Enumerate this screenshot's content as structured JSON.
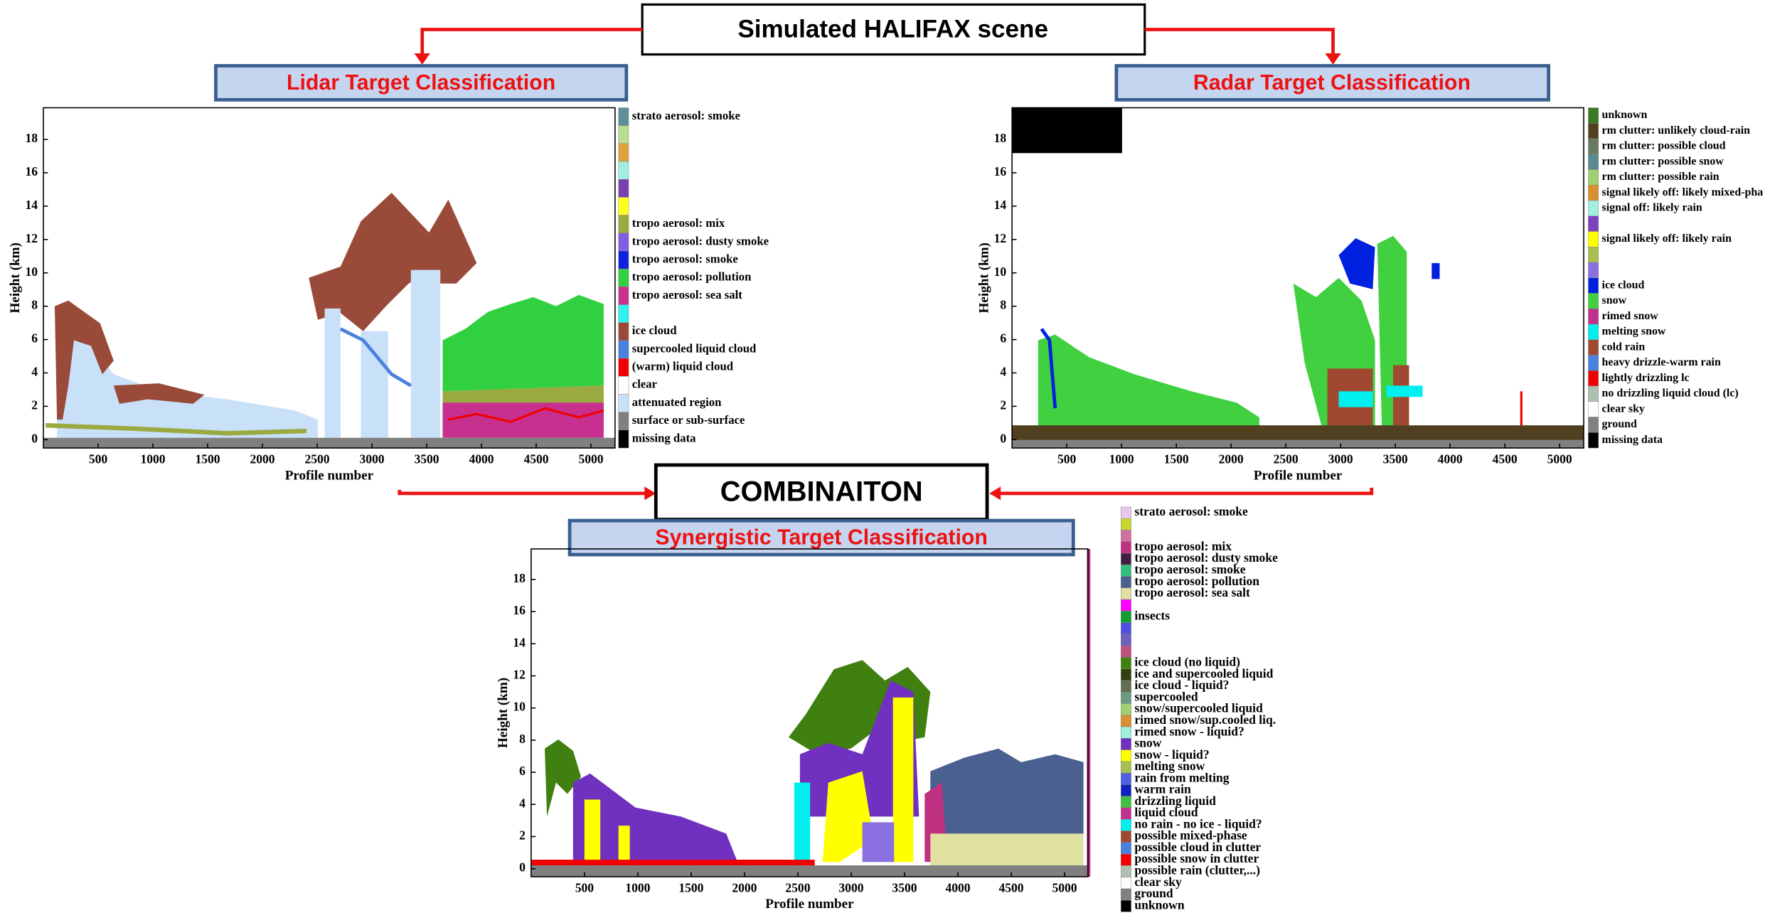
{
  "title": "Simulated HALIFAX scene",
  "combination": "COMBINAITON",
  "panels": [
    {
      "title": "Lidar Target Classification",
      "ylabel": "Height (km)",
      "xlabel": "Profile number",
      "ylim": [
        -0.5,
        19.9
      ],
      "xlim": [
        0,
        5220
      ],
      "yticks": [
        0,
        2,
        4,
        6,
        8,
        10,
        12,
        14,
        16,
        18
      ],
      "xticks": [
        500,
        1000,
        1500,
        2000,
        2500,
        3000,
        3500,
        4000,
        4500,
        5000
      ],
      "legend": [
        {
          "label": "strato aerosol: smoke",
          "color": "#5f8f95"
        },
        {
          "label": null,
          "color": "#b8dd90"
        },
        {
          "label": null,
          "color": "#e0a040"
        },
        {
          "label": null,
          "color": "#a0eee0"
        },
        {
          "label": null,
          "color": "#7a3fb0"
        },
        {
          "label": null,
          "color": "#ffff20"
        },
        {
          "label": "tropo aerosol: mix",
          "color": "#9aaa40"
        },
        {
          "label": "tropo aerosol: dusty smoke",
          "color": "#8060e0"
        },
        {
          "label": "tropo aerosol: smoke",
          "color": "#1020e0"
        },
        {
          "label": "tropo aerosol: pollution",
          "color": "#30d040"
        },
        {
          "label": "tropo aerosol: sea salt",
          "color": "#c83090"
        },
        {
          "label": null,
          "color": "#30f0f0"
        },
        {
          "label": "ice cloud",
          "color": "#9a4a38"
        },
        {
          "label": "supercooled liquid cloud",
          "color": "#4a80e0"
        },
        {
          "label": "(warm) liquid cloud",
          "color": "#f00000"
        },
        {
          "label": "clear",
          "color": "#ffffff"
        },
        {
          "label": "attenuated region",
          "color": "#c8e0f8"
        },
        {
          "label": "surface or sub-surface",
          "color": "#808080"
        },
        {
          "label": "missing data",
          "color": "#000000"
        }
      ]
    },
    {
      "title": "Radar Target Classification",
      "ylabel": "Height (km)",
      "xlabel": "Profile number",
      "ylim": [
        -0.5,
        19.9
      ],
      "xlim": [
        0,
        5220
      ],
      "yticks": [
        0,
        2,
        4,
        6,
        8,
        10,
        12,
        14,
        16,
        18
      ],
      "xticks": [
        500,
        1000,
        1500,
        2000,
        2500,
        3000,
        3500,
        4000,
        4500,
        5000
      ],
      "legend": [
        {
          "label": "unknown",
          "color": "#3a7a20"
        },
        {
          "label": "rm clutter: unlikely cloud-rain",
          "color": "#504020"
        },
        {
          "label": "rm clutter: possible cloud",
          "color": "#6a7a60"
        },
        {
          "label": "rm clutter: possible snow",
          "color": "#5a8a90"
        },
        {
          "label": "rm clutter: possible rain",
          "color": "#a0d070"
        },
        {
          "label": "signal likely off: likely mixed-pha",
          "color": "#d89030"
        },
        {
          "label": "signal off: likely rain",
          "color": "#a0f0e0"
        },
        {
          "label": null,
          "color": "#8040c0"
        },
        {
          "label": "signal likely off: likely rain",
          "color": "#ffff00"
        },
        {
          "label": null,
          "color": "#a8c050"
        },
        {
          "label": null,
          "color": "#8a70e0"
        },
        {
          "label": "ice cloud",
          "color": "#0020e0"
        },
        {
          "label": "snow",
          "color": "#40d040"
        },
        {
          "label": "rimed snow",
          "color": "#c03090"
        },
        {
          "label": "melting snow",
          "color": "#00f0f0"
        },
        {
          "label": "cold rain",
          "color": "#a04830"
        },
        {
          "label": "heavy drizzle-warm rain",
          "color": "#4a80e0"
        },
        {
          "label": "lightly drizzling lc",
          "color": "#f00000"
        },
        {
          "label": "no drizzling liquid cloud (lc)",
          "color": "#b0c0b0"
        },
        {
          "label": "clear sky",
          "color": "#ffffff"
        },
        {
          "label": "ground",
          "color": "#808080"
        },
        {
          "label": "missing data",
          "color": "#000000"
        }
      ]
    },
    {
      "title": "Synergistic Target Classification",
      "ylabel": "Height (km)",
      "xlabel": "Profile number",
      "ylim": [
        -0.5,
        19.9
      ],
      "xlim": [
        0,
        5220
      ],
      "yticks": [
        0,
        2,
        4,
        6,
        8,
        10,
        12,
        14,
        16,
        18
      ],
      "xticks": [
        500,
        1000,
        1500,
        2000,
        2500,
        3000,
        3500,
        4000,
        4500,
        5000
      ],
      "legend": [
        {
          "label": "strato aerosol: smoke",
          "color": "#e8c8e8"
        },
        {
          "label": null,
          "color": "#c8d830"
        },
        {
          "label": null,
          "color": "#d070a0"
        },
        {
          "label": "tropo aerosol: mix",
          "color": "#c03080"
        },
        {
          "label": "tropo aerosol: dusty smoke",
          "color": "#402040"
        },
        {
          "label": "tropo aerosol: smoke",
          "color": "#30c080"
        },
        {
          "label": "tropo aerosol: pollution",
          "color": "#4a6090"
        },
        {
          "label": "tropo aerosol: sea salt",
          "color": "#e0e0a0"
        },
        {
          "label": null,
          "color": "#ff00ff"
        },
        {
          "label": "insects",
          "color": "#10a030"
        },
        {
          "label": null,
          "color": "#5050e0"
        },
        {
          "label": null,
          "color": "#7060c0"
        },
        {
          "label": null,
          "color": "#c05080"
        },
        {
          "label": "ice cloud (no liquid)",
          "color": "#408010"
        },
        {
          "label": "ice and supercooled liquid",
          "color": "#304010"
        },
        {
          "label": "ice cloud - liquid?",
          "color": "#607050"
        },
        {
          "label": "supercooled",
          "color": "#6a9a80"
        },
        {
          "label": "snow/supercooled liquid",
          "color": "#a0d070"
        },
        {
          "label": "rimed snow/sup.cooled liq.",
          "color": "#d89030"
        },
        {
          "label": "rimed snow - liquid?",
          "color": "#a0f0e0"
        },
        {
          "label": "snow",
          "color": "#7030c0"
        },
        {
          "label": "snow - liquid?",
          "color": "#ffff00"
        },
        {
          "label": "melting snow",
          "color": "#a8c050"
        },
        {
          "label": "rain from melting",
          "color": "#5060e0"
        },
        {
          "label": "warm rain",
          "color": "#1020c0"
        },
        {
          "label": "drizzling liquid",
          "color": "#40c040"
        },
        {
          "label": "liquid cloud",
          "color": "#c03090"
        },
        {
          "label": "no rain - no ice - liquid?",
          "color": "#00f0f0"
        },
        {
          "label": "possible mixed-phase",
          "color": "#a04830"
        },
        {
          "label": "possible cloud in clutter",
          "color": "#4a80e0"
        },
        {
          "label": "possible snow in clutter",
          "color": "#f00000"
        },
        {
          "label": "possible rain (clutter,...)",
          "color": "#b0c0b0"
        },
        {
          "label": "clear sky",
          "color": "#ffffff"
        },
        {
          "label": "ground",
          "color": "#808080"
        },
        {
          "label": "unknown",
          "color": "#000000"
        }
      ]
    }
  ]
}
